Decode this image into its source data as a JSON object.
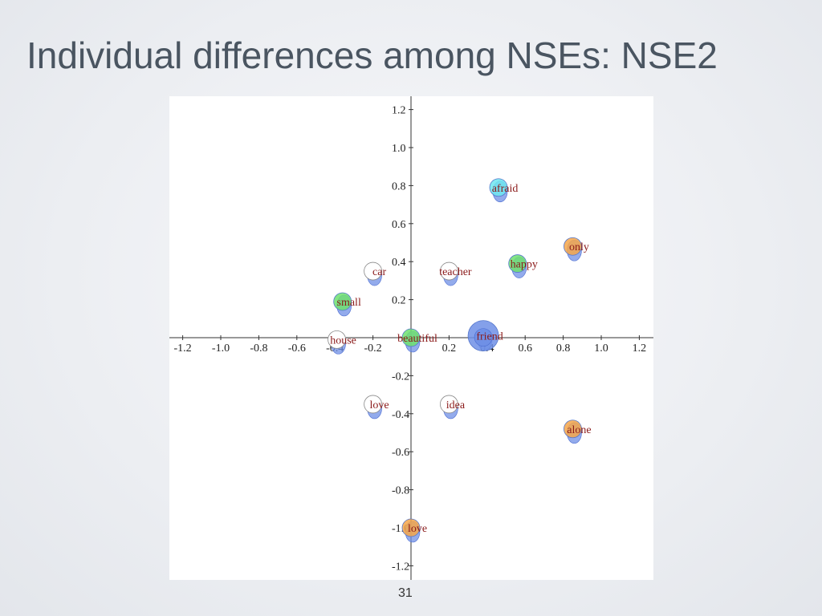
{
  "slide": {
    "title": "Individual differences among NSEs: NSE2",
    "page_number": "31"
  },
  "chart_data": {
    "type": "scatter",
    "title": "",
    "xlabel": "",
    "ylabel": "",
    "xlim": [
      -1.25,
      1.25
    ],
    "ylim": [
      -1.25,
      1.25
    ],
    "grid": false,
    "x_ticks": [
      "-1.2",
      "-1.0",
      "-0.8",
      "-0.6",
      "-0.4",
      "-0.2",
      "0.2",
      "0.4",
      "0.6",
      "0.8",
      "1.0",
      "1.2"
    ],
    "y_ticks": [
      "1.2",
      "1.0",
      "0.8",
      "0.6",
      "0.4",
      "0.2",
      "-0.2",
      "-0.4",
      "-0.6",
      "-0.8",
      "-1.0",
      "-1.2"
    ],
    "colors": {
      "blue_blob": "#6f8fe6",
      "cyan": "#6fe6f0",
      "green": "#6fe06f",
      "orange": "#f5a64a",
      "white": "#ffffff",
      "label": "#8b1a1a"
    },
    "points": [
      {
        "label": "afraid",
        "x": 0.46,
        "y": 0.79,
        "color": "cyan"
      },
      {
        "label": "only",
        "x": 0.85,
        "y": 0.48,
        "color": "orange"
      },
      {
        "label": "happy",
        "x": 0.56,
        "y": 0.39,
        "color": "green"
      },
      {
        "label": "car",
        "x": -0.2,
        "y": 0.35,
        "color": "white"
      },
      {
        "label": "teacher",
        "x": 0.2,
        "y": 0.35,
        "color": "white"
      },
      {
        "label": "small",
        "x": -0.36,
        "y": 0.19,
        "color": "green"
      },
      {
        "label": "house",
        "x": -0.39,
        "y": -0.01,
        "color": "white"
      },
      {
        "label": "beautiful",
        "x": 0.0,
        "y": 0.0,
        "color": "green"
      },
      {
        "label": "friend",
        "x": 0.38,
        "y": 0.01,
        "color": "blue_blob"
      },
      {
        "label": "love",
        "x": -0.2,
        "y": -0.35,
        "color": "white"
      },
      {
        "label": "idea",
        "x": 0.2,
        "y": -0.35,
        "color": "white"
      },
      {
        "label": "alone",
        "x": 0.85,
        "y": -0.48,
        "color": "orange"
      },
      {
        "label": "love",
        "x": 0.0,
        "y": -1.0,
        "color": "orange"
      }
    ]
  }
}
